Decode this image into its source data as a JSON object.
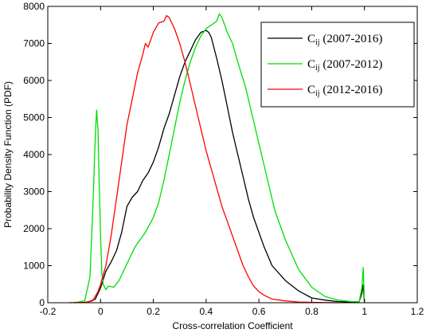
{
  "chart_data": {
    "type": "line",
    "title": "",
    "xlabel": "Cross-correlation Coefficient",
    "ylabel": "Probability Density Function (PDF)",
    "xlim": [
      -0.2,
      1.2
    ],
    "ylim": [
      0,
      8000
    ],
    "xticks": [
      -0.2,
      0,
      0.2,
      0.4,
      0.6,
      0.8,
      1,
      1.2
    ],
    "xtick_labels": [
      "-0.2",
      "0",
      "0.2",
      "0.4",
      "0.6",
      "0.8",
      "1",
      "1.2"
    ],
    "yticks": [
      0,
      1000,
      2000,
      3000,
      4000,
      5000,
      6000,
      7000,
      8000
    ],
    "ytick_labels": [
      "0",
      "1000",
      "2000",
      "3000",
      "4000",
      "5000",
      "6000",
      "7000",
      "8000"
    ],
    "grid": false,
    "legend_position": "top-right",
    "series": [
      {
        "name": "Cij (2007-2016)",
        "label_main": "C",
        "label_sub": "ij",
        "label_rest": " (2007-2016)",
        "color": "#000000",
        "x": [
          -0.1,
          -0.05,
          -0.02,
          0.0,
          0.02,
          0.04,
          0.06,
          0.08,
          0.1,
          0.12,
          0.14,
          0.16,
          0.18,
          0.2,
          0.22,
          0.24,
          0.26,
          0.28,
          0.3,
          0.32,
          0.34,
          0.36,
          0.38,
          0.4,
          0.41,
          0.42,
          0.44,
          0.46,
          0.48,
          0.5,
          0.52,
          0.54,
          0.56,
          0.58,
          0.6,
          0.62,
          0.65,
          0.7,
          0.75,
          0.8,
          0.85,
          0.9,
          0.95,
          0.98,
          0.99,
          0.995,
          1.0
        ],
        "y": [
          0,
          10,
          100,
          400,
          850,
          1100,
          1400,
          1900,
          2600,
          2850,
          3000,
          3300,
          3500,
          3800,
          4200,
          4700,
          5100,
          5600,
          6100,
          6500,
          6800,
          7100,
          7300,
          7350,
          7300,
          7150,
          6600,
          6000,
          5300,
          4600,
          4000,
          3400,
          2800,
          2300,
          1900,
          1500,
          1000,
          600,
          320,
          130,
          70,
          30,
          20,
          30,
          250,
          480,
          0
        ]
      },
      {
        "name": "Cij (2007-2012)",
        "label_main": "C",
        "label_sub": "ij",
        "label_rest": " (2007-2012)",
        "color": "#00dd00",
        "x": [
          -0.1,
          -0.06,
          -0.04,
          -0.03,
          -0.02,
          -0.015,
          -0.01,
          -0.005,
          0.0,
          0.005,
          0.01,
          0.02,
          0.03,
          0.05,
          0.07,
          0.09,
          0.11,
          0.13,
          0.15,
          0.17,
          0.2,
          0.22,
          0.24,
          0.26,
          0.28,
          0.3,
          0.32,
          0.34,
          0.36,
          0.38,
          0.4,
          0.42,
          0.44,
          0.45,
          0.46,
          0.47,
          0.48,
          0.5,
          0.52,
          0.55,
          0.58,
          0.6,
          0.63,
          0.66,
          0.7,
          0.75,
          0.8,
          0.85,
          0.9,
          0.95,
          0.98,
          0.99,
          0.995,
          1.0
        ],
        "y": [
          0,
          50,
          700,
          2400,
          4500,
          5200,
          4700,
          3200,
          1800,
          800,
          500,
          350,
          450,
          420,
          600,
          900,
          1200,
          1500,
          1700,
          1900,
          2300,
          2700,
          3300,
          4000,
          4700,
          5400,
          6000,
          6500,
          6900,
          7200,
          7400,
          7500,
          7600,
          7800,
          7700,
          7500,
          7300,
          7000,
          6500,
          5800,
          4900,
          4300,
          3400,
          2500,
          1700,
          900,
          420,
          170,
          70,
          30,
          30,
          400,
          950,
          0
        ]
      },
      {
        "name": "Cij (2012-2016)",
        "label_main": "C",
        "label_sub": "ij",
        "label_rest": " (2012-2016)",
        "color": "#ff0000",
        "x": [
          -0.12,
          -0.06,
          -0.03,
          -0.01,
          0.0,
          0.02,
          0.04,
          0.06,
          0.08,
          0.1,
          0.12,
          0.14,
          0.16,
          0.17,
          0.18,
          0.19,
          0.2,
          0.22,
          0.24,
          0.25,
          0.26,
          0.27,
          0.28,
          0.3,
          0.32,
          0.34,
          0.36,
          0.38,
          0.4,
          0.42,
          0.44,
          0.46,
          0.48,
          0.5,
          0.52,
          0.54,
          0.56,
          0.58,
          0.6,
          0.62,
          0.65,
          0.7,
          0.75,
          0.8,
          0.85,
          0.9
        ],
        "y": [
          0,
          10,
          50,
          300,
          500,
          1000,
          1800,
          2800,
          3800,
          4800,
          5500,
          6200,
          6700,
          7000,
          6900,
          7100,
          7300,
          7550,
          7600,
          7750,
          7700,
          7550,
          7400,
          7000,
          6500,
          5900,
          5300,
          4700,
          4100,
          3600,
          3100,
          2600,
          2200,
          1800,
          1400,
          1000,
          700,
          450,
          300,
          200,
          100,
          50,
          20,
          10,
          5,
          0
        ]
      }
    ]
  }
}
